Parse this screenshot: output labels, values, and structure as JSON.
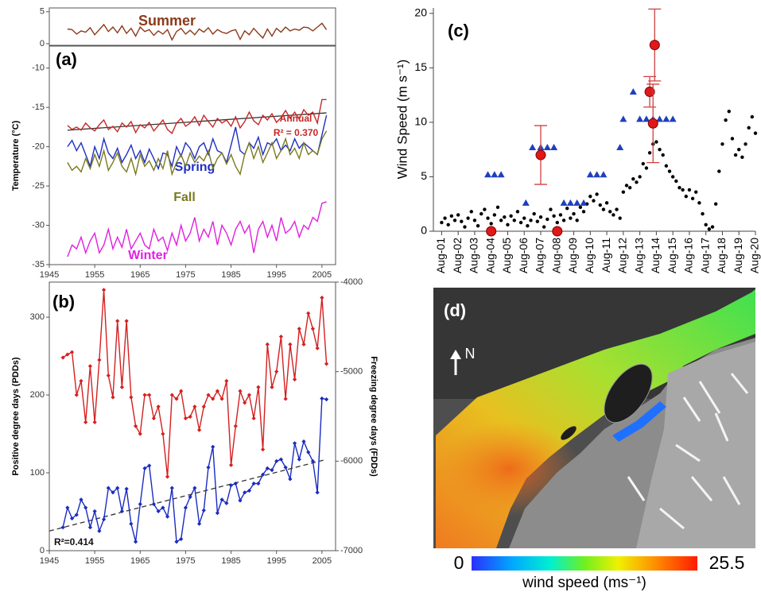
{
  "chart_data": [
    {
      "type": "line",
      "label": "(a)",
      "ylabel": "Temperature (°C)",
      "xlim": [
        1945,
        2008
      ],
      "xticks": [
        1945,
        1955,
        1965,
        1975,
        1985,
        1995,
        2005
      ],
      "ylim": [
        -35,
        -7.2
      ],
      "yticks": [
        -35,
        -30,
        -25,
        -20,
        -15,
        -10
      ],
      "y2lim": [
        -0.25,
        5.6
      ],
      "y2ticks": [
        0,
        5
      ],
      "x": [
        1949,
        1950,
        1951,
        1952,
        1953,
        1954,
        1955,
        1956,
        1957,
        1958,
        1959,
        1960,
        1961,
        1962,
        1963,
        1964,
        1965,
        1966,
        1967,
        1968,
        1969,
        1970,
        1971,
        1972,
        1973,
        1974,
        1975,
        1976,
        1977,
        1978,
        1979,
        1980,
        1981,
        1982,
        1983,
        1984,
        1985,
        1986,
        1987,
        1988,
        1989,
        1990,
        1991,
        1992,
        1993,
        1994,
        1995,
        1996,
        1997,
        1998,
        1999,
        2000,
        2001,
        2002,
        2003,
        2004,
        2005,
        2006
      ],
      "series": [
        {
          "name": "Summer",
          "color": "#8b3a1a",
          "axis": "y2",
          "values": [
            2.3,
            2.2,
            1.5,
            2.0,
            1.8,
            2.5,
            1.4,
            2.2,
            3.0,
            1.9,
            2.6,
            1.7,
            2.8,
            1.6,
            2.4,
            1.2,
            2.6,
            1.9,
            2.2,
            1.3,
            2.0,
            1.5,
            2.2,
            0.6,
            1.9,
            2.4,
            1.5,
            2.1,
            1.4,
            2.3,
            1.8,
            2.5,
            1.5,
            2.2,
            1.8,
            1.6,
            2.0,
            2.2,
            0.7,
            2.0,
            1.4,
            2.4,
            1.6,
            0.9,
            2.3,
            1.2,
            2.4,
            1.8,
            2.6,
            2.0,
            2.3,
            2.1,
            2.6,
            2.5,
            2.0,
            2.6,
            3.2,
            2.2
          ]
        },
        {
          "name": "Annual",
          "color": "#c62828",
          "values": [
            -17.3,
            -17.8,
            -17.5,
            -17.9,
            -17.0,
            -17.6,
            -18.0,
            -17.2,
            -16.6,
            -17.8,
            -17.4,
            -18.1,
            -17.0,
            -17.5,
            -16.8,
            -18.2,
            -17.2,
            -17.6,
            -16.9,
            -18.0,
            -17.3,
            -16.6,
            -17.8,
            -18.3,
            -17.0,
            -16.4,
            -17.4,
            -17.0,
            -16.2,
            -17.3,
            -16.0,
            -16.8,
            -17.5,
            -16.4,
            -17.0,
            -16.6,
            -17.4,
            -16.2,
            -17.6,
            -16.8,
            -15.6,
            -16.7,
            -17.2,
            -16.0,
            -16.6,
            -15.8,
            -16.9,
            -16.3,
            -15.4,
            -16.4,
            -15.6,
            -16.5,
            -15.3,
            -16.0,
            -15.6,
            -17.0,
            -14.0,
            -14.0
          ]
        },
        {
          "name": "Spring",
          "color": "#1f2fbf",
          "values": [
            -20.0,
            -19.2,
            -20.5,
            -19.5,
            -21.0,
            -22.5,
            -20.0,
            -21.5,
            -19.0,
            -20.8,
            -21.5,
            -20.2,
            -22.0,
            -21.0,
            -19.8,
            -21.5,
            -20.5,
            -22.0,
            -20.3,
            -21.5,
            -22.8,
            -20.8,
            -21.0,
            -22.5,
            -20.0,
            -21.2,
            -19.5,
            -20.2,
            -21.5,
            -20.0,
            -19.5,
            -21.0,
            -19.0,
            -20.5,
            -20.8,
            -22.0,
            -19.8,
            -17.5,
            -20.5,
            -21.0,
            -19.5,
            -20.2,
            -18.8,
            -21.0,
            -19.5,
            -19.8,
            -19.0,
            -20.5,
            -19.8,
            -20.5,
            -19.0,
            -20.2,
            -19.5,
            -20.0,
            -20.5,
            -21.0,
            -18.5,
            -16.0
          ]
        },
        {
          "name": "Fall",
          "color": "#7a7a1f",
          "values": [
            -22.0,
            -23.0,
            -22.5,
            -23.2,
            -21.5,
            -22.8,
            -21.0,
            -22.5,
            -20.5,
            -23.0,
            -22.0,
            -20.8,
            -22.5,
            -23.2,
            -21.5,
            -23.5,
            -21.0,
            -22.5,
            -21.8,
            -23.0,
            -21.5,
            -22.8,
            -20.5,
            -23.5,
            -22.0,
            -21.0,
            -22.5,
            -20.8,
            -22.0,
            -21.2,
            -21.8,
            -20.5,
            -22.8,
            -21.5,
            -20.8,
            -22.2,
            -21.0,
            -22.5,
            -23.5,
            -21.0,
            -19.5,
            -21.5,
            -20.0,
            -22.0,
            -20.8,
            -19.5,
            -21.5,
            -20.5,
            -19.0,
            -21.0,
            -20.2,
            -21.5,
            -19.5,
            -21.0,
            -20.5,
            -21.0,
            -19.0,
            -18.0
          ]
        },
        {
          "name": "Winter",
          "color": "#e020e0",
          "values": [
            -34.0,
            -32.5,
            -33.0,
            -31.5,
            -33.5,
            -32.0,
            -31.0,
            -33.5,
            -32.5,
            -30.5,
            -33.0,
            -31.5,
            -32.8,
            -30.5,
            -33.0,
            -32.0,
            -31.0,
            -32.5,
            -33.0,
            -30.5,
            -32.0,
            -31.5,
            -33.2,
            -31.0,
            -32.5,
            -30.0,
            -32.0,
            -31.0,
            -29.0,
            -32.0,
            -30.5,
            -31.5,
            -29.5,
            -32.5,
            -30.0,
            -31.0,
            -32.5,
            -30.5,
            -29.5,
            -31.0,
            -30.0,
            -33.5,
            -30.5,
            -29.5,
            -31.5,
            -30.0,
            -32.0,
            -29.0,
            -31.0,
            -30.5,
            -29.5,
            -31.5,
            -30.0,
            -30.5,
            -29.0,
            -29.5,
            -27.2,
            -27.0
          ]
        }
      ],
      "trend": {
        "x": [
          1949,
          2006
        ],
        "values": [
          -17.9,
          -15.7
        ],
        "label": "R² = 0.370",
        "color": "#333333",
        "style": "solid"
      }
    },
    {
      "type": "line",
      "label": "(b)",
      "ylabel": "Positive degree days (PDDs)",
      "y2label": "Freezing degree days (FDDs)",
      "markers": true,
      "xlim": [
        1945,
        2008
      ],
      "xticks": [
        1945,
        1955,
        1965,
        1975,
        1985,
        1995,
        2005
      ],
      "ylim": [
        0,
        345
      ],
      "yticks": [
        0,
        100,
        200,
        300
      ],
      "y2lim": [
        -7000,
        -4000
      ],
      "y2ticks": [
        -7000,
        -6000,
        -5000,
        -4000
      ],
      "x": [
        1948,
        1949,
        1950,
        1951,
        1952,
        1953,
        1954,
        1955,
        1956,
        1957,
        1958,
        1959,
        1960,
        1961,
        1962,
        1963,
        1964,
        1965,
        1966,
        1967,
        1968,
        1969,
        1970,
        1971,
        1972,
        1973,
        1974,
        1975,
        1976,
        1977,
        1978,
        1979,
        1980,
        1981,
        1982,
        1983,
        1984,
        1985,
        1986,
        1987,
        1988,
        1989,
        1990,
        1991,
        1992,
        1993,
        1994,
        1995,
        1996,
        1997,
        1998,
        1999,
        2000,
        2001,
        2002,
        2003,
        2004,
        2005,
        2006
      ],
      "series": [
        {
          "color": "#d42020",
          "values": [
            248,
            252,
            255,
            200,
            218,
            165,
            237,
            165,
            245,
            335,
            225,
            197,
            295,
            210,
            295,
            197,
            160,
            150,
            200,
            200,
            170,
            185,
            150,
            95,
            200,
            195,
            205,
            170,
            172,
            185,
            155,
            185,
            200,
            195,
            205,
            195,
            218,
            110,
            160,
            205,
            190,
            200,
            170,
            210,
            130,
            265,
            210,
            230,
            275,
            195,
            265,
            220,
            285,
            265,
            305,
            285,
            260,
            325,
            240
          ]
        },
        {
          "color": "#1a2cc0",
          "axis": "y2",
          "values": [
            -6740,
            -6520,
            -6640,
            -6600,
            -6430,
            -6520,
            -6740,
            -6560,
            -6780,
            -6650,
            -6300,
            -6350,
            -6300,
            -6560,
            -6310,
            -6700,
            -6900,
            -6480,
            -6080,
            -6050,
            -6480,
            -6560,
            -6520,
            -6620,
            -6300,
            -6900,
            -6870,
            -6520,
            -6400,
            -6300,
            -6700,
            -6550,
            -6070,
            -5840,
            -6580,
            -6430,
            -6470,
            -6270,
            -6250,
            -6440,
            -6350,
            -6330,
            -6250,
            -6250,
            -6150,
            -6080,
            -6100,
            -6000,
            -5980,
            -6070,
            -6200,
            -5800,
            -5980,
            -5780,
            -5900,
            -6000,
            -6350,
            -5300,
            -5310
          ]
        }
      ],
      "trend": {
        "x": [
          1945,
          2006
        ],
        "values": [
          -6780,
          -5980
        ],
        "axis": "y2",
        "label": "R²=0.414",
        "color": "#333333",
        "style": "dashed"
      }
    },
    {
      "type": "scatter",
      "label": "(c)",
      "ylabel": "Wind Speed (m s⁻¹)",
      "xlim": [
        0.5,
        20
      ],
      "ylim": [
        0,
        20.5
      ],
      "yticks": [
        0,
        5,
        10,
        15,
        20
      ],
      "xticks": [
        {
          "value": 1,
          "label": "Aug-01"
        },
        {
          "value": 2,
          "label": "Aug-02"
        },
        {
          "value": 3,
          "label": "Aug-03"
        },
        {
          "value": 4,
          "label": "Aug-04"
        },
        {
          "value": 5,
          "label": "Aug-05"
        },
        {
          "value": 6,
          "label": "Aug-06"
        },
        {
          "value": 7,
          "label": "Aug-07"
        },
        {
          "value": 8,
          "label": "Aug-08"
        },
        {
          "value": 9,
          "label": "Aug-09"
        },
        {
          "value": 10,
          "label": "Aug-10"
        },
        {
          "value": 11,
          "label": "Aug-11"
        },
        {
          "value": 12,
          "label": "Aug-12"
        },
        {
          "value": 13,
          "label": "Aug-13"
        },
        {
          "value": 14,
          "label": "Aug-14"
        },
        {
          "value": 15,
          "label": "Aug-15"
        },
        {
          "value": 16,
          "label": "Aug-16"
        },
        {
          "value": 17,
          "label": "Aug-17"
        },
        {
          "value": 18,
          "label": "Aug-18"
        },
        {
          "value": 19,
          "label": "Aug-19"
        },
        {
          "value": 20,
          "label": "Aug-20"
        }
      ],
      "series": [
        {
          "color": "#000000",
          "marker": "dot",
          "x": [
            1.0,
            1.2,
            1.4,
            1.6,
            1.8,
            2.0,
            2.2,
            2.4,
            2.6,
            2.8,
            3.0,
            3.2,
            3.4,
            3.6,
            3.8,
            4.0,
            4.2,
            4.4,
            4.6,
            4.8,
            5.0,
            5.2,
            5.4,
            5.6,
            5.8,
            6.0,
            6.2,
            6.4,
            6.6,
            6.8,
            7.0,
            7.2,
            7.4,
            7.6,
            7.8,
            8.0,
            8.2,
            8.4,
            8.6,
            8.8,
            9.0,
            9.2,
            9.4,
            9.6,
            9.8,
            10.0,
            10.2,
            10.4,
            10.6,
            10.8,
            11.0,
            11.2,
            11.4,
            11.6,
            11.8,
            12.0,
            12.2,
            12.4,
            12.6,
            12.8,
            13.0,
            13.2,
            13.4,
            13.6,
            13.8,
            14.0,
            14.2,
            14.4,
            14.6,
            14.8,
            15.0,
            15.2,
            15.4,
            15.6,
            15.8,
            16.0,
            16.2,
            16.4,
            16.6,
            16.8,
            17.0,
            17.2,
            17.4,
            17.6,
            17.8,
            18.0,
            18.2,
            18.4,
            18.6,
            18.8,
            19.0,
            19.2,
            19.4,
            19.6,
            19.8,
            20.0
          ],
          "values": [
            0.8,
            1.2,
            0.6,
            1.4,
            1.0,
            1.5,
            0.9,
            0.4,
            1.2,
            1.8,
            1.0,
            0.5,
            1.6,
            2.0,
            1.2,
            0.7,
            1.5,
            2.2,
            1.0,
            1.3,
            0.6,
            1.4,
            1.0,
            1.8,
            0.8,
            1.2,
            0.5,
            1.0,
            1.6,
            0.9,
            1.3,
            0.4,
            1.1,
            2.0,
            1.4,
            0.8,
            1.5,
            1.0,
            2.1,
            1.2,
            1.6,
            1.0,
            2.2,
            1.8,
            2.5,
            3.2,
            2.8,
            3.4,
            2.4,
            2.0,
            2.6,
            1.8,
            1.5,
            2.0,
            1.2,
            3.6,
            4.2,
            4.0,
            4.8,
            4.5,
            5.0,
            6.2,
            5.8,
            7.2,
            8.0,
            8.2,
            7.5,
            7.0,
            6.0,
            5.5,
            5.0,
            4.6,
            4.0,
            3.8,
            3.2,
            3.8,
            3.0,
            3.6,
            2.6,
            1.6,
            0.6,
            0.2,
            0.4,
            2.5,
            5.5,
            8.0,
            10.2,
            11.0,
            8.5,
            7.0,
            7.5,
            6.8,
            8.0,
            9.5,
            10.5,
            9.0
          ]
        },
        {
          "color": "#1f3fbf",
          "marker": "triangle",
          "x": [
            3.8,
            4.2,
            4.6,
            6.1,
            6.5,
            7.0,
            7.4,
            7.8,
            8.4,
            8.8,
            9.2,
            9.6,
            10.0,
            10.4,
            10.8,
            11.8,
            12.0,
            12.6,
            13.0,
            13.4,
            13.8,
            14.2,
            14.6,
            15.0
          ],
          "values": [
            5.2,
            5.2,
            5.2,
            2.6,
            7.7,
            7.7,
            7.7,
            7.7,
            2.6,
            2.6,
            2.6,
            2.6,
            5.2,
            5.2,
            5.2,
            7.7,
            10.3,
            12.8,
            10.3,
            10.3,
            10.3,
            10.3,
            10.3,
            10.3
          ]
        },
        {
          "color": "#e01818",
          "marker": "circle",
          "x": [
            4.0,
            7.0,
            8.0,
            13.6,
            13.9,
            13.8
          ],
          "values": [
            0,
            7.0,
            0,
            12.8,
            17.1,
            9.9
          ],
          "errors": [
            0,
            2.7,
            0,
            1.4,
            3.3,
            3.6
          ]
        }
      ]
    },
    {
      "type": "map",
      "label": "(d)",
      "north": "N",
      "colorbar": {
        "min": 0,
        "max": 25.5,
        "label": "wind speed (ms⁻¹)"
      }
    }
  ]
}
